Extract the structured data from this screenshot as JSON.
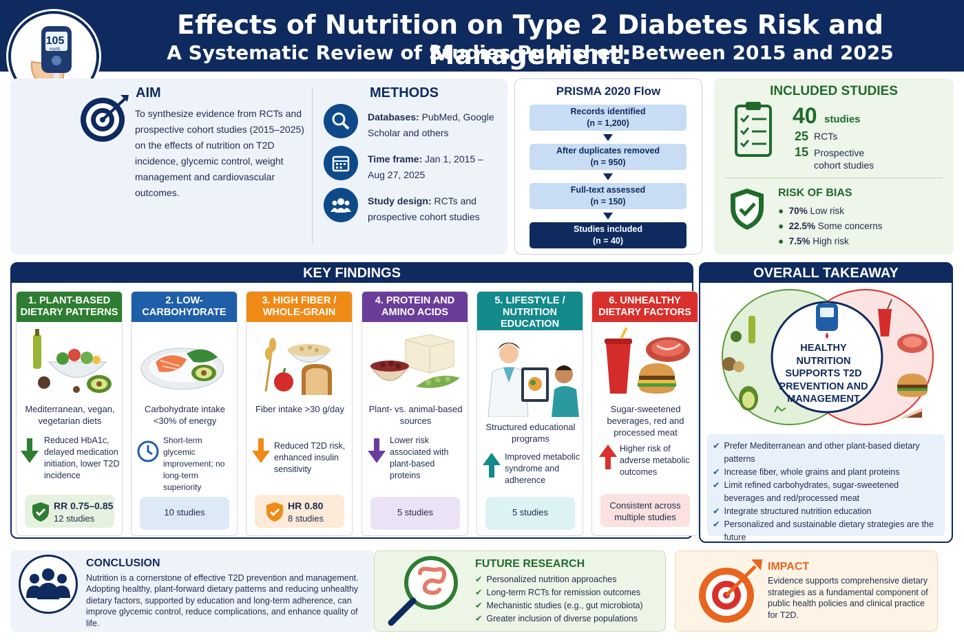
{
  "header": {
    "title": "Effects of Nutrition on Type 2 Diabetes Risk and Management:",
    "subtitle": "A Systematic Review of Studies Published Between 2015 and 2025",
    "meter_value": "105",
    "meter_unit": "mg/dL"
  },
  "aim": {
    "title": "AIM",
    "text": "To synthesize evidence from RCTs and prospective cohort studies (2015–2025) on the effects of nutrition on T2D incidence, glycemic control, weight management and cardiovascular outcomes."
  },
  "methods": {
    "title": "METHODS",
    "items": [
      {
        "label": "Databases:",
        "text": " PubMed, Google Scholar and others",
        "icon": "search-icon"
      },
      {
        "label": "Time frame:",
        "text": " Jan 1, 2015 – Aug 27, 2025",
        "icon": "calendar-icon"
      },
      {
        "label": "Study design:",
        "text": " RCTs and prospective cohort studies",
        "icon": "people-icon"
      }
    ]
  },
  "prisma": {
    "title": "PRISMA 2020 Flow",
    "steps": [
      {
        "label": "Records identified",
        "n": "(n = 1,200)"
      },
      {
        "label": "After duplicates removed",
        "n": "(n = 950)"
      },
      {
        "label": "Full-text assessed",
        "n": "(n = 150)"
      },
      {
        "label": "Studies included",
        "n": "(n = 40)"
      }
    ]
  },
  "included": {
    "title": "INCLUDED STUDIES",
    "total": "40",
    "total_label": "studies",
    "rct_n": "25",
    "rct_label": "RCTs",
    "cohort_n": "15",
    "cohort_label": "Prospective cohort studies",
    "rob_title": "RISK OF BIAS",
    "rob": [
      {
        "pct": "70%",
        "label": " Low risk"
      },
      {
        "pct": "22.5%",
        "label": " Some concerns"
      },
      {
        "pct": "7.5%",
        "label": " High risk"
      }
    ]
  },
  "key_findings": {
    "title": "KEY FINDINGS",
    "columns": [
      {
        "title": "1. PLANT-BASED DIETARY PATTERNS",
        "color": "#2e7d32",
        "desc": "Mediterranean, vegan, vegetarian diets",
        "result": "Reduced HbA1c, delayed medication initiation, lower T2D incidence",
        "badge_line1": "RR 0.75–0.85",
        "badge_line2": "12 studies",
        "badge_bg": "#e6f2df"
      },
      {
        "title": "2. LOW-CARBOHYDRATE",
        "color": "#1f5fa8",
        "desc": "Carbohydrate intake <30% of energy",
        "result": "Short-term glycemic improvement; no long-term superiority",
        "badge_line1": "10 studies",
        "badge_line2": "",
        "badge_bg": "#dde9f7"
      },
      {
        "title": "3. HIGH FIBER / WHOLE-GRAIN",
        "color": "#ef8a17",
        "desc": "Fiber intake >30 g/day",
        "result": "Reduced T2D risk, enhanced insulin sensitivity",
        "badge_line1": "HR 0.80",
        "badge_line2": "8 studies",
        "badge_bg": "#fdebd7"
      },
      {
        "title": "4. PROTEIN AND AMINO ACIDS",
        "color": "#6a3d9a",
        "desc": "Plant- vs. animal-based sources",
        "result": "Lower risk associated with plant-based proteins",
        "badge_line1": "5 studies",
        "badge_line2": "",
        "badge_bg": "#ebe3f5"
      },
      {
        "title": "5. LIFESTYLE / NUTRITION EDUCATION",
        "color": "#138a8c",
        "desc": "Structured educational programs",
        "result": "Improved metabolic syndrome and adherence",
        "badge_line1": "5 studies",
        "badge_line2": "",
        "badge_bg": "#ddf2f2"
      },
      {
        "title": "6. UNHEALTHY DIETARY FACTORS",
        "color": "#d9302c",
        "desc": "Sugar-sweetened beverages, red and processed meat",
        "result": "Higher risk of adverse metabolic outcomes",
        "badge_line1": "Consistent across multiple studies",
        "badge_line2": "",
        "badge_bg": "#fbe1df"
      }
    ]
  },
  "takeaway": {
    "title": "OVERALL TAKEAWAY",
    "center": "HEALTHY NUTRITION SUPPORTS T2D PREVENTION AND MANAGEMENT",
    "bullets": [
      "Prefer Mediterranean and other plant-based dietary patterns",
      "Increase fiber, whole grains and plant proteins",
      "Limit refined carbohydrates, sugar-sweetened beverages and red/processed meat",
      "Integrate structured nutrition education",
      "Personalized and sustainable dietary strategies are the future"
    ]
  },
  "conclusion": {
    "title": "CONCLUSION",
    "text": "Nutrition is a cornerstone of effective T2D prevention and management. Adopting healthy, plant-forward dietary patterns and reducing unhealthy dietary factors, supported by education and long-term adherence, can improve glycemic control, reduce complications, and enhance quality of life."
  },
  "future": {
    "title": "FUTURE RESEARCH",
    "items": [
      "Personalized nutrition approaches",
      "Long-term RCTs for remission outcomes",
      "Mechanistic studies (e.g., gut microbiota)",
      "Greater inclusion of diverse populations"
    ]
  },
  "impact": {
    "title": "IMPACT",
    "text": "Evidence supports comprehensive dietary strategies as a fundamental component of public health policies and clinical practice for T2D."
  }
}
